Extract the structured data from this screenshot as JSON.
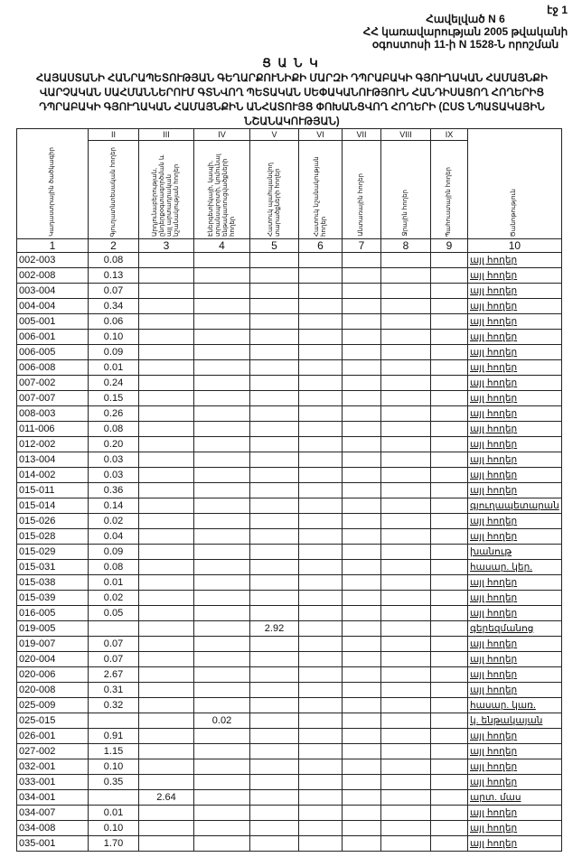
{
  "page_number": "էջ 1",
  "annex": [
    "Հավելված N 6",
    "ՀՀ կառավարության 2005 թվականի",
    "օգոստոսի 11-ի N 1528-Ն որոշման"
  ],
  "title": "Ց Ա Ն Կ",
  "subtitle": "ՀԱՅԱՍՏԱՆԻ ՀԱՆՐԱՊԵՏՈՒԹՅԱՆ ԳԵՂԱՐՔՈՒՆԻՔԻ ՄԱՐԶԻ ԴՊՐԱԲԱԿԻ ԳՅՈՒՂԱԿԱՆ ՀԱՄԱՅՆՔԻ ՎԱՐՉԱԿԱՆ ՍԱՀՄԱՆՆԵՐՈՒՄ ԳՏՆՎՈՂ ՊԵՏԱԿԱՆ ՍԵՓԱԿԱՆՈՒԹՅՈՒՆ ՀԱՆԴԻՍԱՑՈՂ ՀՈՂԵՐԻՑ ԴՊՐԱԲԱԿԻ ԳՅՈՒՂԱԿԱՆ ՀԱՄԱՅՆՔԻՆ ԱՆՀԱՏՈՒՅՑ ՓՈԽԱՆՑՎՈՂ ՀՈՂԵՐԻ (ԸՍՏ ՆՊԱՏԱԿԱՅԻՆ ՆՇԱՆԱԿՈՒԹՅԱՆ)",
  "columns": [
    {
      "roman": "",
      "label": "Կադաստրային ծածկագիր",
      "num": "1"
    },
    {
      "roman": "II",
      "label": "Գյուղատնտեսական հողեր",
      "num": "2"
    },
    {
      "roman": "III",
      "label": "Արդյունաբերության, ընդերքօգտագործման և այլ արտադրական նշանակության հողեր",
      "num": "3"
    },
    {
      "roman": "IV",
      "label": "Էներգետիկայի, կապի, տրանսպորտի, կոմունալ ենթակառուցվածքների հողեր",
      "num": "4"
    },
    {
      "roman": "V",
      "label": "Հատուկ պահպանվող տարածքների հողեր",
      "num": "5"
    },
    {
      "roman": "VI",
      "label": "Հատուկ նշանակության հողեր",
      "num": "6"
    },
    {
      "roman": "VII",
      "label": "Անտառային հողեր",
      "num": "7"
    },
    {
      "roman": "VIII",
      "label": "Ջրային հողեր",
      "num": "8"
    },
    {
      "roman": "IX",
      "label": "Պահուստային հողեր",
      "num": "9"
    },
    {
      "roman": "",
      "label": "Ծանոթություն",
      "num": "10"
    }
  ],
  "rows": [
    {
      "code": "002-003",
      "v": [
        "0.08",
        "",
        "",
        "",
        "",
        "",
        "",
        ""
      ],
      "note": "այլ հողեր"
    },
    {
      "code": "002-008",
      "v": [
        "0.13",
        "",
        "",
        "",
        "",
        "",
        "",
        ""
      ],
      "note": "այլ հողեր"
    },
    {
      "code": "003-004",
      "v": [
        "0.07",
        "",
        "",
        "",
        "",
        "",
        "",
        ""
      ],
      "note": "այլ հողեր"
    },
    {
      "code": "004-004",
      "v": [
        "0.34",
        "",
        "",
        "",
        "",
        "",
        "",
        ""
      ],
      "note": "այլ հողեր"
    },
    {
      "code": "005-001",
      "v": [
        "0.06",
        "",
        "",
        "",
        "",
        "",
        "",
        ""
      ],
      "note": "այլ հողեր"
    },
    {
      "code": "006-001",
      "v": [
        "0.10",
        "",
        "",
        "",
        "",
        "",
        "",
        ""
      ],
      "note": "այլ հողեր"
    },
    {
      "code": "006-005",
      "v": [
        "0.09",
        "",
        "",
        "",
        "",
        "",
        "",
        ""
      ],
      "note": "այլ հողեր"
    },
    {
      "code": "006-008",
      "v": [
        "0.01",
        "",
        "",
        "",
        "",
        "",
        "",
        ""
      ],
      "note": "այլ հողեր"
    },
    {
      "code": "007-002",
      "v": [
        "0.24",
        "",
        "",
        "",
        "",
        "",
        "",
        ""
      ],
      "note": "այլ հողեր"
    },
    {
      "code": "007-007",
      "v": [
        "0.15",
        "",
        "",
        "",
        "",
        "",
        "",
        ""
      ],
      "note": "այլ հողեր"
    },
    {
      "code": "008-003",
      "v": [
        "0.26",
        "",
        "",
        "",
        "",
        "",
        "",
        ""
      ],
      "note": "այլ հողեր"
    },
    {
      "code": "011-006",
      "v": [
        "0.08",
        "",
        "",
        "",
        "",
        "",
        "",
        ""
      ],
      "note": "այլ հողեր"
    },
    {
      "code": "012-002",
      "v": [
        "0.20",
        "",
        "",
        "",
        "",
        "",
        "",
        ""
      ],
      "note": "այլ հողեր"
    },
    {
      "code": "013-004",
      "v": [
        "0.03",
        "",
        "",
        "",
        "",
        "",
        "",
        ""
      ],
      "note": "այլ հողեր"
    },
    {
      "code": "014-002",
      "v": [
        "0.03",
        "",
        "",
        "",
        "",
        "",
        "",
        ""
      ],
      "note": "այլ հողեր"
    },
    {
      "code": "015-011",
      "v": [
        "0.36",
        "",
        "",
        "",
        "",
        "",
        "",
        ""
      ],
      "note": "այլ հողեր"
    },
    {
      "code": "015-014",
      "v": [
        "0.14",
        "",
        "",
        "",
        "",
        "",
        "",
        ""
      ],
      "note": "գյուղապետարան"
    },
    {
      "code": "015-026",
      "v": [
        "0.02",
        "",
        "",
        "",
        "",
        "",
        "",
        ""
      ],
      "note": "այլ հողեր"
    },
    {
      "code": "015-028",
      "v": [
        "0.04",
        "",
        "",
        "",
        "",
        "",
        "",
        ""
      ],
      "note": "այլ հողեր"
    },
    {
      "code": "015-029",
      "v": [
        "0.09",
        "",
        "",
        "",
        "",
        "",
        "",
        ""
      ],
      "note": "խանութ"
    },
    {
      "code": "015-031",
      "v": [
        "0.08",
        "",
        "",
        "",
        "",
        "",
        "",
        ""
      ],
      "note": "հասար. կեր."
    },
    {
      "code": "015-038",
      "v": [
        "0.01",
        "",
        "",
        "",
        "",
        "",
        "",
        ""
      ],
      "note": "այլ հողեր"
    },
    {
      "code": "015-039",
      "v": [
        "0.02",
        "",
        "",
        "",
        "",
        "",
        "",
        ""
      ],
      "note": "այլ հողեր"
    },
    {
      "code": "016-005",
      "v": [
        "0.05",
        "",
        "",
        "",
        "",
        "",
        "",
        ""
      ],
      "note": "այլ հողեր"
    },
    {
      "code": "019-005",
      "v": [
        "",
        "",
        "",
        "2.92",
        "",
        "",
        "",
        ""
      ],
      "note": "գերեզմանոց"
    },
    {
      "code": "019-007",
      "v": [
        "0.07",
        "",
        "",
        "",
        "",
        "",
        "",
        ""
      ],
      "note": "այլ հողեր"
    },
    {
      "code": "020-004",
      "v": [
        "0.07",
        "",
        "",
        "",
        "",
        "",
        "",
        ""
      ],
      "note": "այլ հողեր"
    },
    {
      "code": "020-006",
      "v": [
        "2.67",
        "",
        "",
        "",
        "",
        "",
        "",
        ""
      ],
      "note": "այլ հողեր"
    },
    {
      "code": "020-008",
      "v": [
        "0.31",
        "",
        "",
        "",
        "",
        "",
        "",
        ""
      ],
      "note": "այլ հողեր"
    },
    {
      "code": "025-009",
      "v": [
        "0.32",
        "",
        "",
        "",
        "",
        "",
        "",
        ""
      ],
      "note": "հասար. կառ."
    },
    {
      "code": "025-015",
      "v": [
        "",
        "",
        "0.02",
        "",
        "",
        "",
        "",
        ""
      ],
      "note": "կ. ենթակայան"
    },
    {
      "code": "026-001",
      "v": [
        "0.91",
        "",
        "",
        "",
        "",
        "",
        "",
        ""
      ],
      "note": "այլ հողեր"
    },
    {
      "code": "027-002",
      "v": [
        "1.15",
        "",
        "",
        "",
        "",
        "",
        "",
        ""
      ],
      "note": "այլ հողեր"
    },
    {
      "code": "032-001",
      "v": [
        "0.10",
        "",
        "",
        "",
        "",
        "",
        "",
        ""
      ],
      "note": "այլ հողեր"
    },
    {
      "code": "033-001",
      "v": [
        "0.35",
        "",
        "",
        "",
        "",
        "",
        "",
        ""
      ],
      "note": "այլ հողեր"
    },
    {
      "code": "034-001",
      "v": [
        "",
        "2.64",
        "",
        "",
        "",
        "",
        "",
        ""
      ],
      "note": "արտ. մաս"
    },
    {
      "code": "034-007",
      "v": [
        "0.01",
        "",
        "",
        "",
        "",
        "",
        "",
        ""
      ],
      "note": "այլ հողեր"
    },
    {
      "code": "034-008",
      "v": [
        "0.10",
        "",
        "",
        "",
        "",
        "",
        "",
        ""
      ],
      "note": "այլ հողեր"
    },
    {
      "code": "035-001",
      "v": [
        "1.70",
        "",
        "",
        "",
        "",
        "",
        "",
        ""
      ],
      "note": "այլ հողեր"
    }
  ]
}
